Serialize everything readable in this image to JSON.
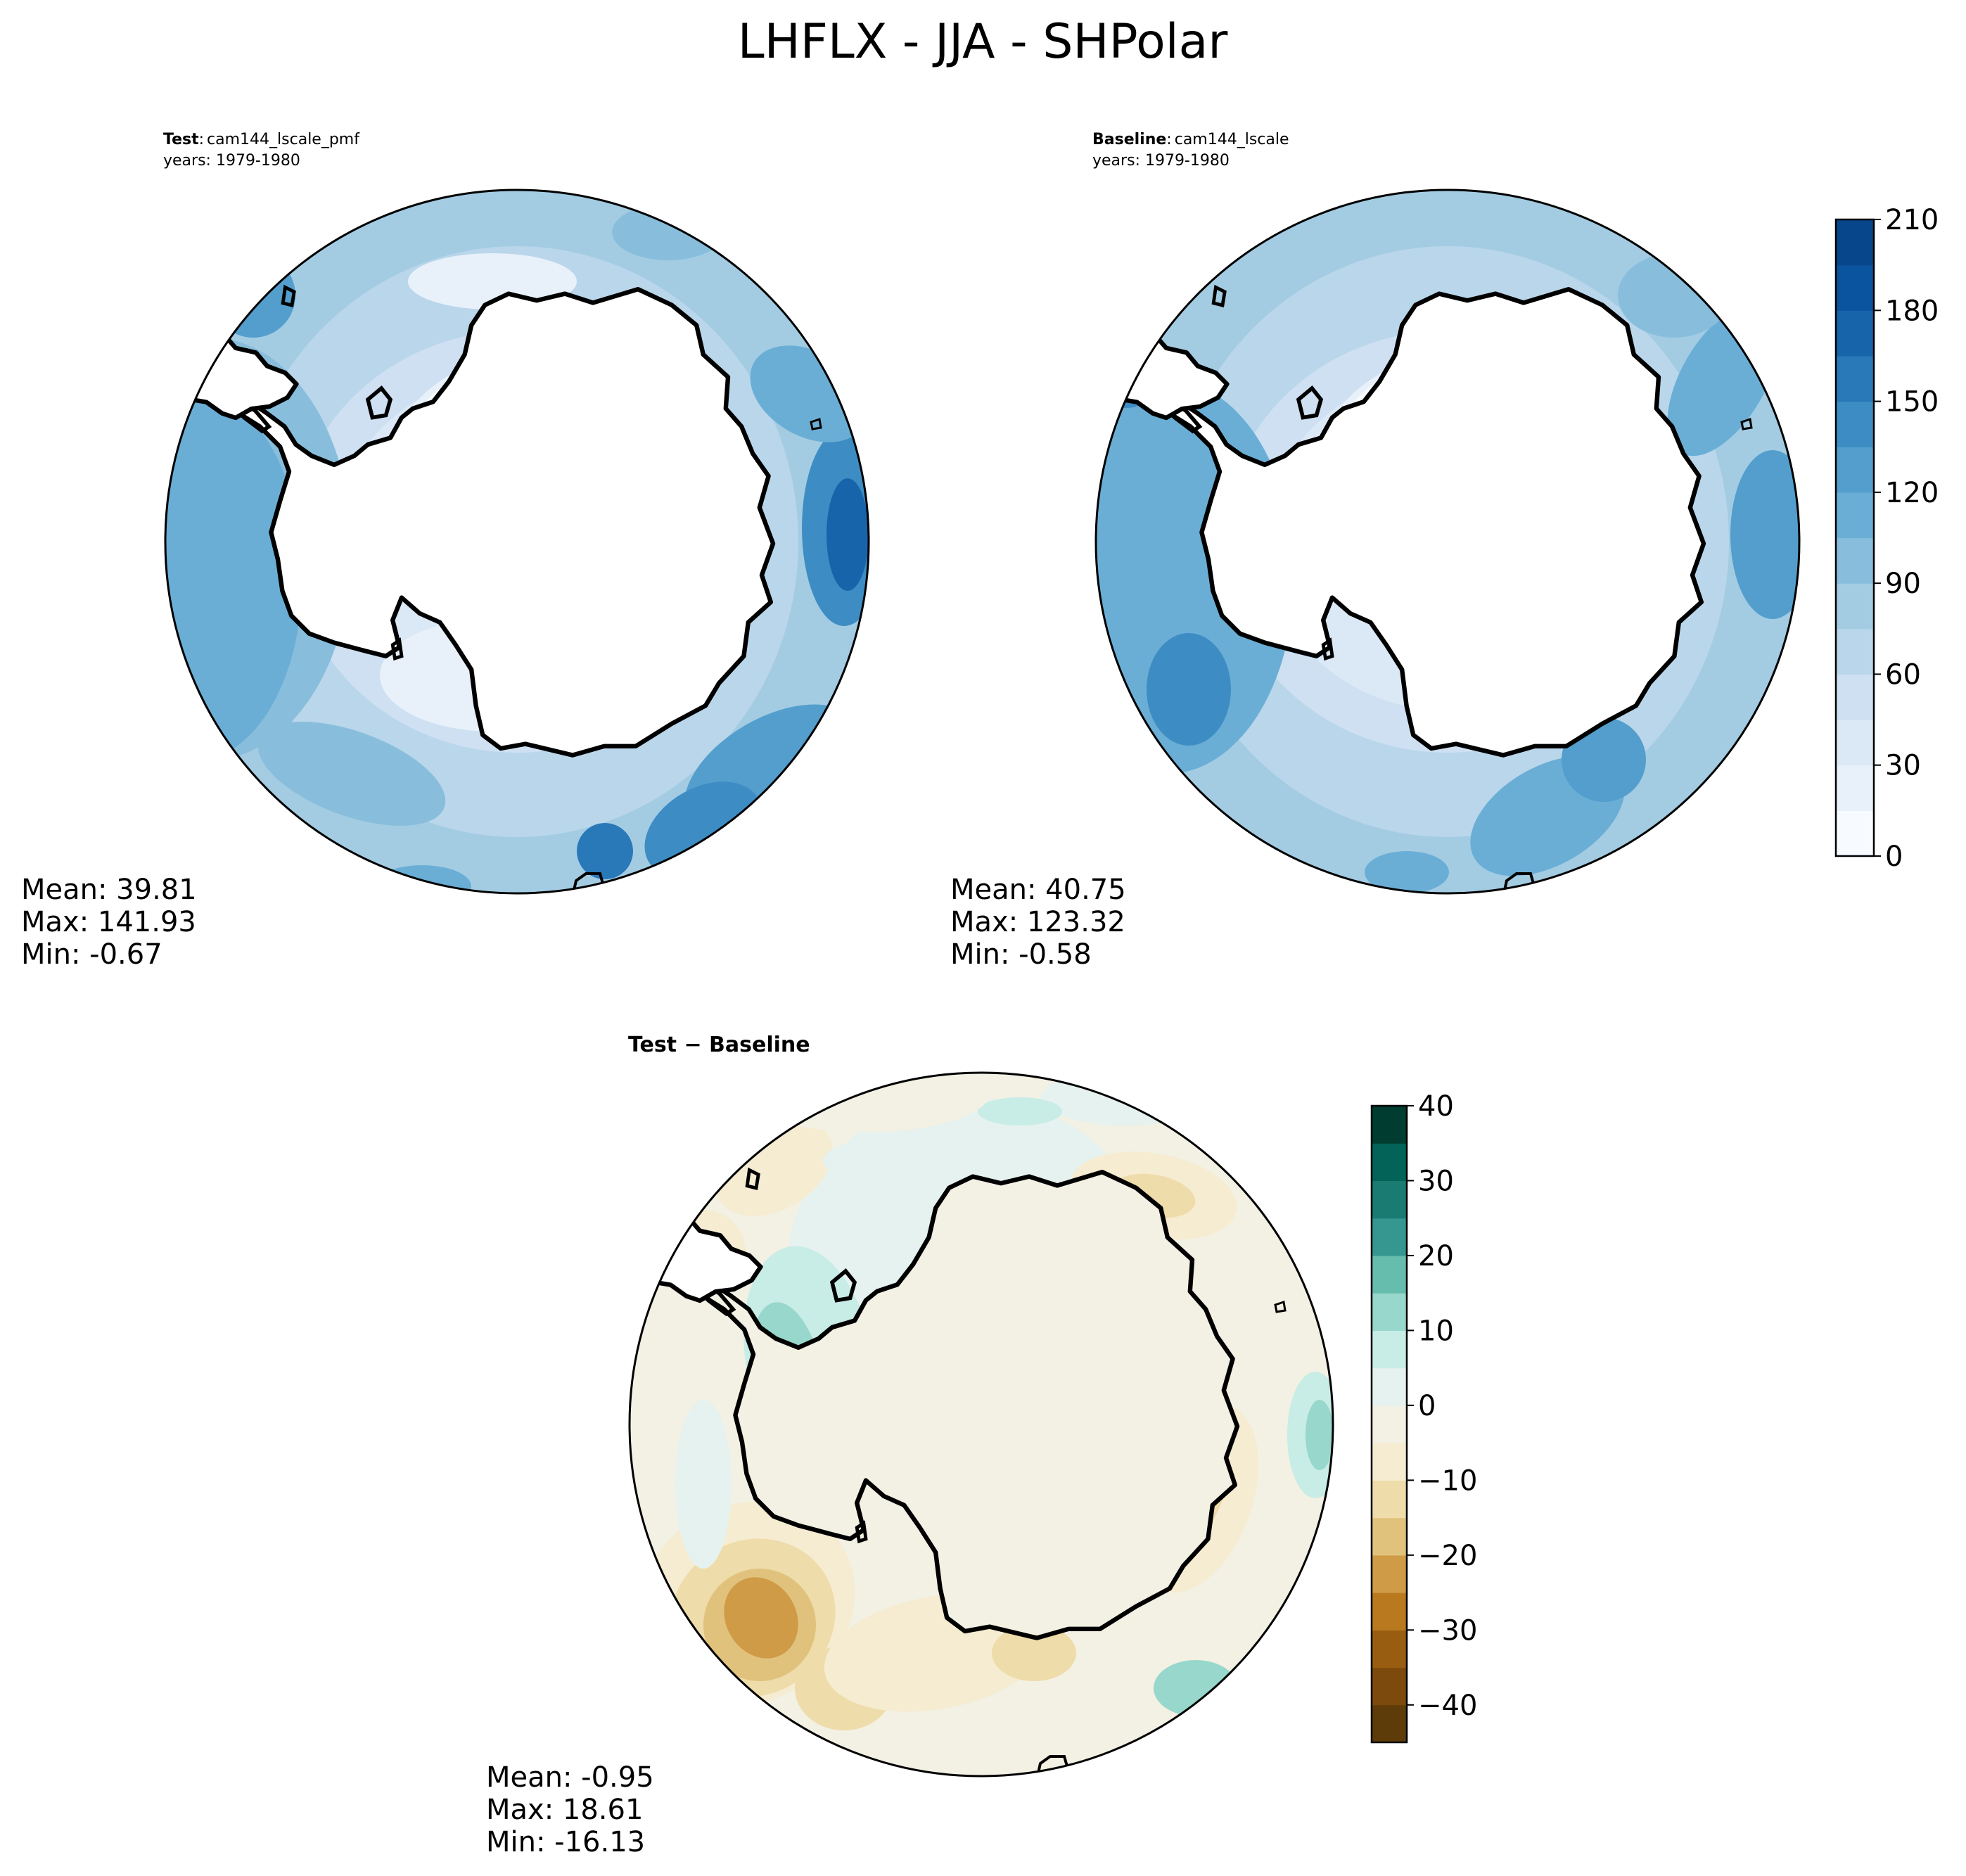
{
  "figure": {
    "title": "LHFLX - JJA - SHPolar"
  },
  "panels": {
    "test": {
      "label_bold": "Test",
      "label_sep": ":",
      "case": "cam144_lscale_pmf",
      "years": "years: 1979-1980",
      "stats": {
        "mean": "Mean: 39.81",
        "max": "Max: 141.93",
        "min": "Min: -0.67"
      }
    },
    "baseline": {
      "label_bold": "Baseline",
      "label_sep": ":",
      "case": "cam144_lscale",
      "years": "years: 1979-1980",
      "stats": {
        "mean": "Mean: 40.75",
        "max": "Max: 123.32",
        "min": "Min: -0.58"
      }
    },
    "diff": {
      "title": "Test − Baseline",
      "stats": {
        "mean": "Mean: -0.95",
        "max": "Max: 18.61",
        "min": "Min: -16.13"
      }
    }
  },
  "colors": {
    "blues": [
      "#f7fbff",
      "#e8f1fa",
      "#dbe9f6",
      "#cee0f2",
      "#bad6eb",
      "#a3cce3",
      "#88bedc",
      "#6aaed6",
      "#539ecd",
      "#3d8dc4",
      "#2979b9",
      "#1764ab",
      "#0a539e",
      "#08468b",
      "#083574"
    ],
    "brbg": [
      "#5e3c0a",
      "#7b4a0c",
      "#995d12",
      "#b8791f",
      "#cf9b47",
      "#e1c27d",
      "#eedcaa",
      "#f5ecd1",
      "#f3f0e4",
      "#e6f2ef",
      "#c8ece6",
      "#98d7cb",
      "#66bcad",
      "#35978f",
      "#1a7b72",
      "#036358",
      "#003d30"
    ],
    "coast": "#000000"
  },
  "chart_data": [
    {
      "type": "heatmap",
      "name": "test",
      "projection": "south-polar-stereographic",
      "colorbar": {
        "ticks": [
          "0",
          "30",
          "60",
          "90",
          "120",
          "150",
          "180",
          "210"
        ],
        "range": [
          0,
          210
        ],
        "interval": 15
      },
      "mean": 39.81,
      "max": 141.93,
      "min": -0.67
    },
    {
      "type": "heatmap",
      "name": "baseline",
      "projection": "south-polar-stereographic",
      "colorbar": {
        "ticks": [
          "0",
          "30",
          "60",
          "90",
          "120",
          "150",
          "180",
          "210"
        ],
        "range": [
          0,
          210
        ],
        "interval": 15
      },
      "mean": 40.75,
      "max": 123.32,
      "min": -0.58
    },
    {
      "type": "heatmap",
      "name": "difference",
      "projection": "south-polar-stereographic",
      "colorbar": {
        "ticks": [
          "40",
          "30",
          "20",
          "10",
          "0",
          "−10",
          "−20",
          "−30",
          "−40"
        ],
        "range": [
          -45,
          40
        ],
        "interval": 5
      },
      "mean": -0.95,
      "max": 18.61,
      "min": -16.13
    }
  ]
}
